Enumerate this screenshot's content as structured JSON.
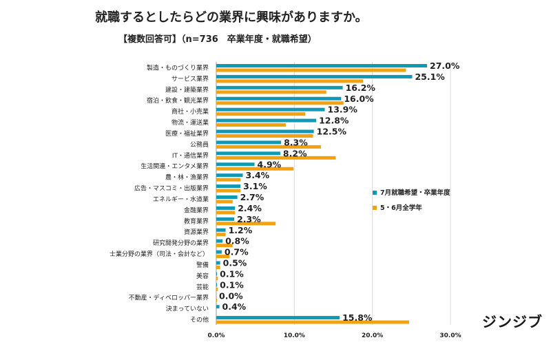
{
  "title": "就職するとしたらどの業界に興味がありますか。",
  "subtitle": "【複数回答可】（n=736　卒業年度・就職希望）",
  "brand": "ジンジブ",
  "chart_data": {
    "type": "bar",
    "orientation": "horizontal",
    "categories": [
      "製造・ものづくり業界",
      "サービス業界",
      "建設・建築業界",
      "宿泊・飲食・観光業界",
      "商社・小売業",
      "物流・運送業",
      "医療・福祉業界",
      "公務員",
      "IT・通信業界",
      "生活関連・エンタメ業界",
      "農・林・漁業界",
      "広告・マスコミ・出版業界",
      "エネルギー・水道業",
      "金融業界",
      "教育業界",
      "資源業界",
      "研究開発分野の業界",
      "士業分野の業界（司法・会計など）",
      "警備",
      "美容",
      "芸能",
      "不動産・ディベロッパー業界",
      "決まっていない",
      "その他"
    ],
    "series": [
      {
        "name": "7月就職希望・卒業年度",
        "color": "#1199b3",
        "values": [
          27.0,
          25.1,
          16.2,
          16.0,
          13.9,
          12.8,
          12.5,
          8.3,
          8.2,
          4.9,
          3.4,
          3.1,
          2.7,
          2.4,
          2.3,
          1.2,
          0.8,
          0.7,
          0.5,
          0.1,
          0.1,
          0.0,
          0.4,
          15.8
        ]
      },
      {
        "name": "5・6月全学年",
        "color": "#f2a20e",
        "values": [
          24.3,
          18.8,
          14.1,
          16.3,
          11.4,
          8.9,
          12.4,
          13.4,
          15.3,
          9.9,
          3.1,
          3.1,
          2.1,
          2.4,
          7.6,
          1.2,
          2.1,
          1.7,
          0.5,
          0.2,
          0.2,
          0.1,
          0.0,
          24.7
        ]
      }
    ],
    "value_labels": [
      "27.0%",
      "25.1%",
      "16.2%",
      "16.0%",
      "13.9%",
      "12.8%",
      "12.5%",
      "8.3%",
      "8.2%",
      "4.9%",
      "3.4%",
      "3.1%",
      "2.7%",
      "2.4%",
      "2.3%",
      "1.2%",
      "0.8%",
      "0.7%",
      "0.5%",
      "0.1%",
      "0.1%",
      "0.0%",
      "0.4%",
      "15.8%"
    ],
    "x_ticks": [
      0,
      10,
      20,
      30
    ],
    "x_tick_labels": [
      "0.0%",
      "10.0%",
      "20.0%",
      "30.0%"
    ],
    "xlim": [
      0,
      30
    ],
    "grid": true,
    "legend_position": "right"
  }
}
